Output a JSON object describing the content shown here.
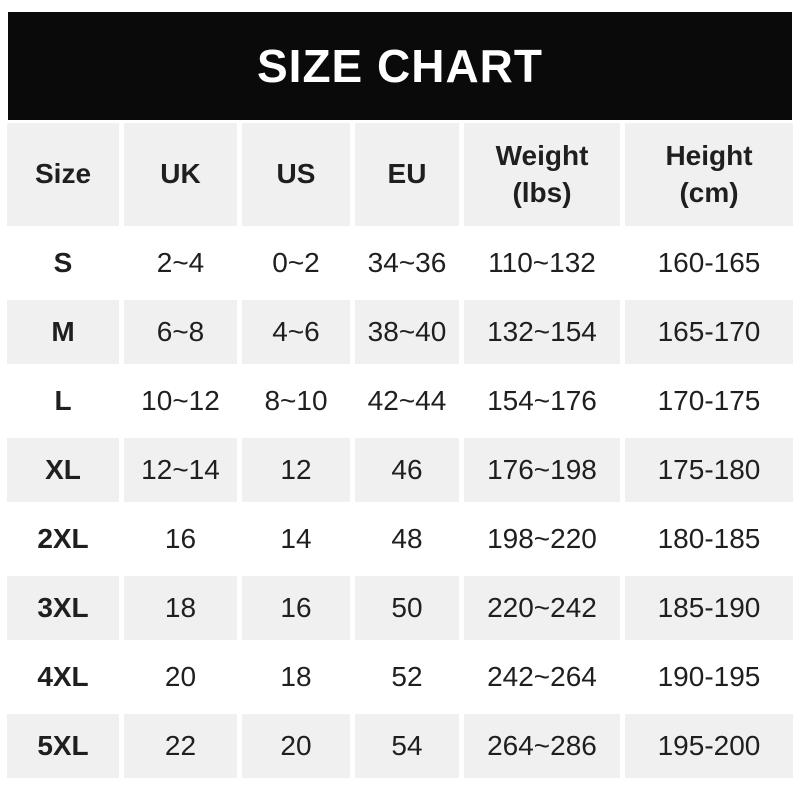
{
  "title": "SIZE CHART",
  "colors": {
    "page_bg": "#ffffff",
    "banner_bg": "#0a0a0a",
    "banner_text": "#ffffff",
    "row_bg": "#ffffff",
    "row_alt_bg": "#f0f0f0",
    "cell_text": "#1f1f1f"
  },
  "chart_data": {
    "type": "table",
    "title": "SIZE CHART",
    "columns": [
      "Size",
      "UK",
      "US",
      "EU",
      "Weight (lbs)",
      "Height (cm)"
    ],
    "rows": [
      [
        "S",
        "2~4",
        "0~2",
        "34~36",
        "110~132",
        "160-165"
      ],
      [
        "M",
        "6~8",
        "4~6",
        "38~40",
        "132~154",
        "165-170"
      ],
      [
        "L",
        "10~12",
        "8~10",
        "42~44",
        "154~176",
        "170-175"
      ],
      [
        "XL",
        "12~14",
        "12",
        "46",
        "176~198",
        "175-180"
      ],
      [
        "2XL",
        "16",
        "14",
        "48",
        "198~220",
        "180-185"
      ],
      [
        "3XL",
        "18",
        "16",
        "50",
        "220~242",
        "185-190"
      ],
      [
        "4XL",
        "20",
        "18",
        "52",
        "242~264",
        "190-195"
      ],
      [
        "5XL",
        "22",
        "20",
        "54",
        "264~286",
        "195-200"
      ]
    ],
    "layout": {
      "header_row_shaded": true,
      "alternating_rows": true,
      "weight_separator": "~",
      "height_separator": "-"
    }
  }
}
